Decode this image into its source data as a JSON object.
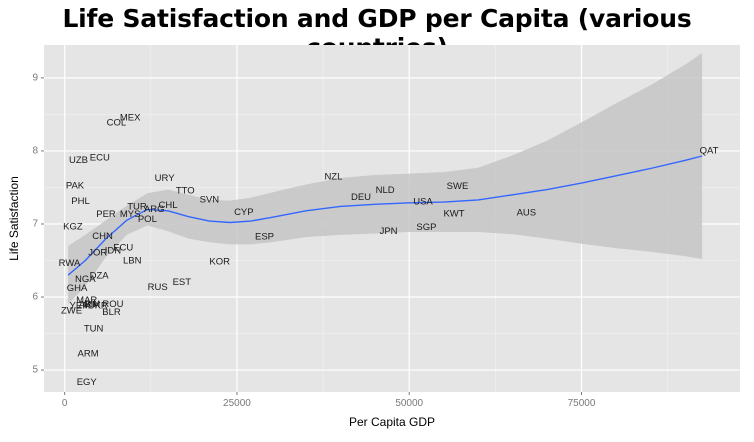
{
  "chart_data": {
    "type": "scatter",
    "title": "Life Satisfaction and GDP per Capita (various countries)",
    "xlabel": "Per Capita GDP",
    "ylabel": "Life Satisfaction",
    "xlim": [
      -3000,
      98000
    ],
    "ylim": [
      4.7,
      9.45
    ],
    "x_ticks": [
      0,
      25000,
      50000,
      75000
    ],
    "x_tick_labels": [
      "0",
      "25000",
      "50000",
      "75000"
    ],
    "y_ticks": [
      5,
      6,
      7,
      8,
      9
    ],
    "y_tick_labels": [
      "5",
      "6",
      "7",
      "8",
      "9"
    ],
    "grid": true,
    "background": "#e5e5e5",
    "points": [
      {
        "label": "MEX",
        "x": 9500,
        "y": 8.45
      },
      {
        "label": "COL",
        "x": 7500,
        "y": 8.38
      },
      {
        "label": "UZB",
        "x": 2000,
        "y": 7.87
      },
      {
        "label": "ECU",
        "x": 5100,
        "y": 7.9
      },
      {
        "label": "URY",
        "x": 14500,
        "y": 7.62
      },
      {
        "label": "TTO",
        "x": 17500,
        "y": 7.45
      },
      {
        "label": "PAK",
        "x": 1500,
        "y": 7.52
      },
      {
        "label": "PHL",
        "x": 2300,
        "y": 7.31
      },
      {
        "label": "TUR",
        "x": 10500,
        "y": 7.23
      },
      {
        "label": "CHL",
        "x": 15000,
        "y": 7.25
      },
      {
        "label": "PER",
        "x": 6000,
        "y": 7.13
      },
      {
        "label": "MYS",
        "x": 9500,
        "y": 7.13
      },
      {
        "label": "POL",
        "x": 12000,
        "y": 7.06
      },
      {
        "label": "ARG",
        "x": 13000,
        "y": 7.2
      },
      {
        "label": "SVN",
        "x": 21000,
        "y": 7.33
      },
      {
        "label": "CYP",
        "x": 26000,
        "y": 7.16
      },
      {
        "label": "KGZ",
        "x": 1200,
        "y": 6.96
      },
      {
        "label": "CHN",
        "x": 5500,
        "y": 6.83
      },
      {
        "label": "JOR",
        "x": 4800,
        "y": 6.6
      },
      {
        "label": "ECU",
        "x": 8500,
        "y": 6.67
      },
      {
        "label": "IDN",
        "x": 7000,
        "y": 6.63
      },
      {
        "label": "RWA",
        "x": 700,
        "y": 6.46
      },
      {
        "label": "LBN",
        "x": 9800,
        "y": 6.49
      },
      {
        "label": "NGA",
        "x": 3000,
        "y": 6.24
      },
      {
        "label": "DZA",
        "x": 5000,
        "y": 6.29
      },
      {
        "label": "GHA",
        "x": 1800,
        "y": 6.12
      },
      {
        "label": "RUS",
        "x": 13500,
        "y": 6.13
      },
      {
        "label": "EST",
        "x": 17000,
        "y": 6.2
      },
      {
        "label": "KOR",
        "x": 22500,
        "y": 6.48
      },
      {
        "label": "ESP",
        "x": 29000,
        "y": 6.82
      },
      {
        "label": "MAR",
        "x": 3200,
        "y": 5.95
      },
      {
        "label": "YEM",
        "x": 2200,
        "y": 5.88
      },
      {
        "label": "ZWE",
        "x": 1000,
        "y": 5.81
      },
      {
        "label": "BIH",
        "x": 4000,
        "y": 5.9
      },
      {
        "label": "ARM",
        "x": 3600,
        "y": 5.89
      },
      {
        "label": "UKR",
        "x": 4800,
        "y": 5.88
      },
      {
        "label": "ROU",
        "x": 7000,
        "y": 5.9
      },
      {
        "label": "BLR",
        "x": 6800,
        "y": 5.79
      },
      {
        "label": "TUN",
        "x": 4200,
        "y": 5.56
      },
      {
        "label": "ARM",
        "x": 3400,
        "y": 5.22
      },
      {
        "label": "EGY",
        "x": 3200,
        "y": 4.83
      },
      {
        "label": "NZL",
        "x": 39000,
        "y": 7.64
      },
      {
        "label": "NLD",
        "x": 46500,
        "y": 7.46
      },
      {
        "label": "DEU",
        "x": 43000,
        "y": 7.36
      },
      {
        "label": "USA",
        "x": 52000,
        "y": 7.3
      },
      {
        "label": "SWE",
        "x": 57000,
        "y": 7.51
      },
      {
        "label": "KWT",
        "x": 56500,
        "y": 7.14
      },
      {
        "label": "AUS",
        "x": 67000,
        "y": 7.15
      },
      {
        "label": "JPN",
        "x": 47000,
        "y": 6.9
      },
      {
        "label": "SGP",
        "x": 52500,
        "y": 6.95
      },
      {
        "label": "QAT",
        "x": 93500,
        "y": 8.0
      }
    ],
    "smooth": {
      "color": "#3366ff",
      "band_color": "#c6c6c6",
      "x": [
        500,
        3000,
        6000,
        9000,
        12000,
        15000,
        18000,
        21000,
        24000,
        27000,
        30000,
        35000,
        40000,
        45000,
        50000,
        55000,
        60000,
        65000,
        70000,
        75000,
        80000,
        85000,
        90000,
        92500
      ],
      "y": [
        6.3,
        6.5,
        6.8,
        7.05,
        7.2,
        7.18,
        7.1,
        7.04,
        7.02,
        7.04,
        7.09,
        7.18,
        7.24,
        7.27,
        7.29,
        7.3,
        7.33,
        7.4,
        7.47,
        7.56,
        7.66,
        7.76,
        7.87,
        7.93
      ],
      "upper": [
        6.7,
        6.85,
        7.05,
        7.25,
        7.42,
        7.47,
        7.4,
        7.33,
        7.32,
        7.36,
        7.43,
        7.54,
        7.63,
        7.67,
        7.69,
        7.71,
        7.77,
        7.94,
        8.14,
        8.39,
        8.65,
        8.9,
        9.18,
        9.34
      ],
      "lower": [
        5.9,
        6.15,
        6.55,
        6.85,
        6.98,
        6.9,
        6.8,
        6.75,
        6.72,
        6.72,
        6.75,
        6.82,
        6.85,
        6.87,
        6.89,
        6.89,
        6.89,
        6.86,
        6.8,
        6.73,
        6.67,
        6.62,
        6.56,
        6.52
      ]
    }
  }
}
